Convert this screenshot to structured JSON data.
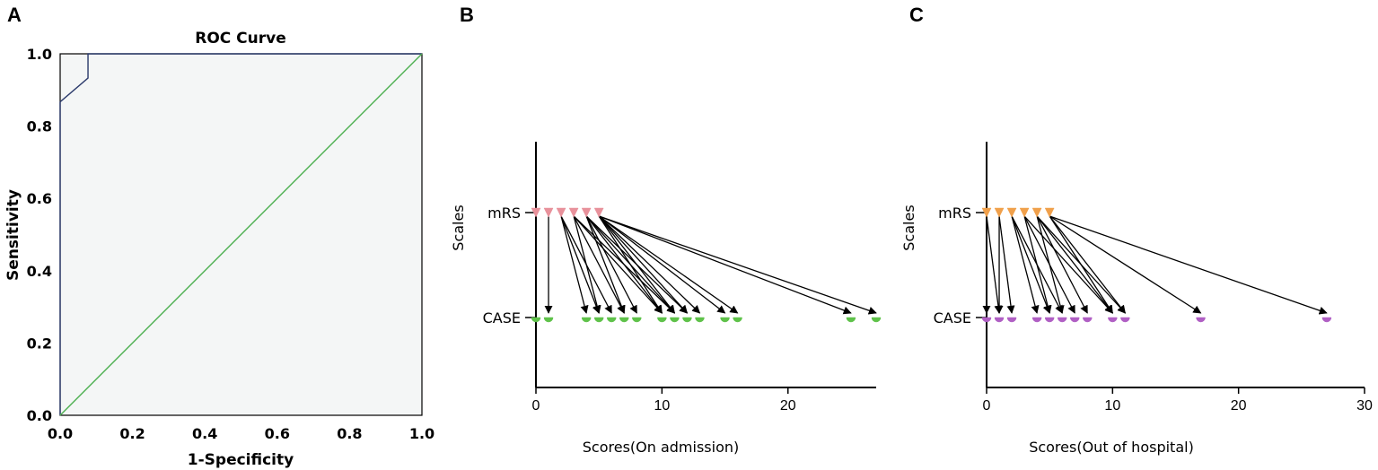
{
  "chart_data": [
    {
      "panel": "A",
      "type": "line",
      "title": "ROC Curve",
      "xlabel": "1-Specificity",
      "ylabel": "Sensitivity",
      "xlim": [
        0,
        1
      ],
      "ylim": [
        0,
        1
      ],
      "xticks": [
        "0.0",
        "0.2",
        "0.4",
        "0.6",
        "0.8",
        "1.0"
      ],
      "yticks": [
        "0.0",
        "0.2",
        "0.4",
        "0.6",
        "0.8",
        "1.0"
      ],
      "series": [
        {
          "x": [
            0,
            0,
            0.077,
            0.077,
            1
          ],
          "y": [
            0,
            0.867,
            0.933,
            1.0,
            1.0
          ],
          "color": "#2b3a6b"
        },
        {
          "x": [
            0,
            1
          ],
          "y": [
            0,
            1
          ],
          "color": "#4caf50"
        }
      ],
      "grid": false
    },
    {
      "panel": "B",
      "type": "scatter",
      "xlabel": "Scores(On admission)",
      "ylabel": "Scales",
      "categories": [
        "mRS",
        "CASE"
      ],
      "xlim": [
        0,
        27
      ],
      "xticks": [
        "0",
        "10",
        "20"
      ],
      "series": [
        {
          "category": "mRS",
          "marker": "triangle-down",
          "color": "#e8919b",
          "x": [
            0,
            1,
            2,
            3,
            4,
            5
          ]
        },
        {
          "category": "CASE",
          "marker": "half-circle",
          "color": "#5fc24a",
          "x": [
            0,
            1,
            4,
            5,
            6,
            7,
            8,
            10,
            11,
            12,
            13,
            15,
            16,
            25,
            27
          ]
        }
      ],
      "links": [
        [
          1,
          1
        ],
        [
          2,
          4
        ],
        [
          2,
          5
        ],
        [
          2,
          6
        ],
        [
          3,
          5
        ],
        [
          3,
          7
        ],
        [
          3,
          10
        ],
        [
          3,
          11
        ],
        [
          4,
          7
        ],
        [
          4,
          8
        ],
        [
          4,
          10
        ],
        [
          4,
          11
        ],
        [
          4,
          12
        ],
        [
          5,
          10
        ],
        [
          5,
          11
        ],
        [
          5,
          12
        ],
        [
          5,
          13
        ],
        [
          5,
          15
        ],
        [
          5,
          16
        ],
        [
          5,
          25
        ],
        [
          5,
          27
        ]
      ],
      "grid": false
    },
    {
      "panel": "C",
      "type": "scatter",
      "xlabel": "Scores(Out of hospital)",
      "ylabel": "Scales",
      "categories": [
        "mRS",
        "CASE"
      ],
      "xlim": [
        0,
        30
      ],
      "xticks": [
        "0",
        "10",
        "20",
        "30"
      ],
      "series": [
        {
          "category": "mRS",
          "marker": "triangle-down",
          "color": "#f0a04b",
          "x": [
            0,
            1,
            2,
            3,
            4,
            5
          ]
        },
        {
          "category": "CASE",
          "marker": "half-circle",
          "color": "#b05fc4",
          "x": [
            0,
            1,
            2,
            4,
            5,
            6,
            7,
            8,
            10,
            11,
            17,
            27
          ]
        }
      ],
      "links": [
        [
          0,
          0
        ],
        [
          0,
          1
        ],
        [
          1,
          1
        ],
        [
          1,
          2
        ],
        [
          2,
          4
        ],
        [
          2,
          5
        ],
        [
          2,
          6
        ],
        [
          3,
          5
        ],
        [
          3,
          7
        ],
        [
          3,
          10
        ],
        [
          4,
          6
        ],
        [
          4,
          8
        ],
        [
          4,
          10
        ],
        [
          4,
          11
        ],
        [
          5,
          10
        ],
        [
          5,
          11
        ],
        [
          5,
          17
        ],
        [
          5,
          27
        ]
      ],
      "grid": false
    }
  ]
}
